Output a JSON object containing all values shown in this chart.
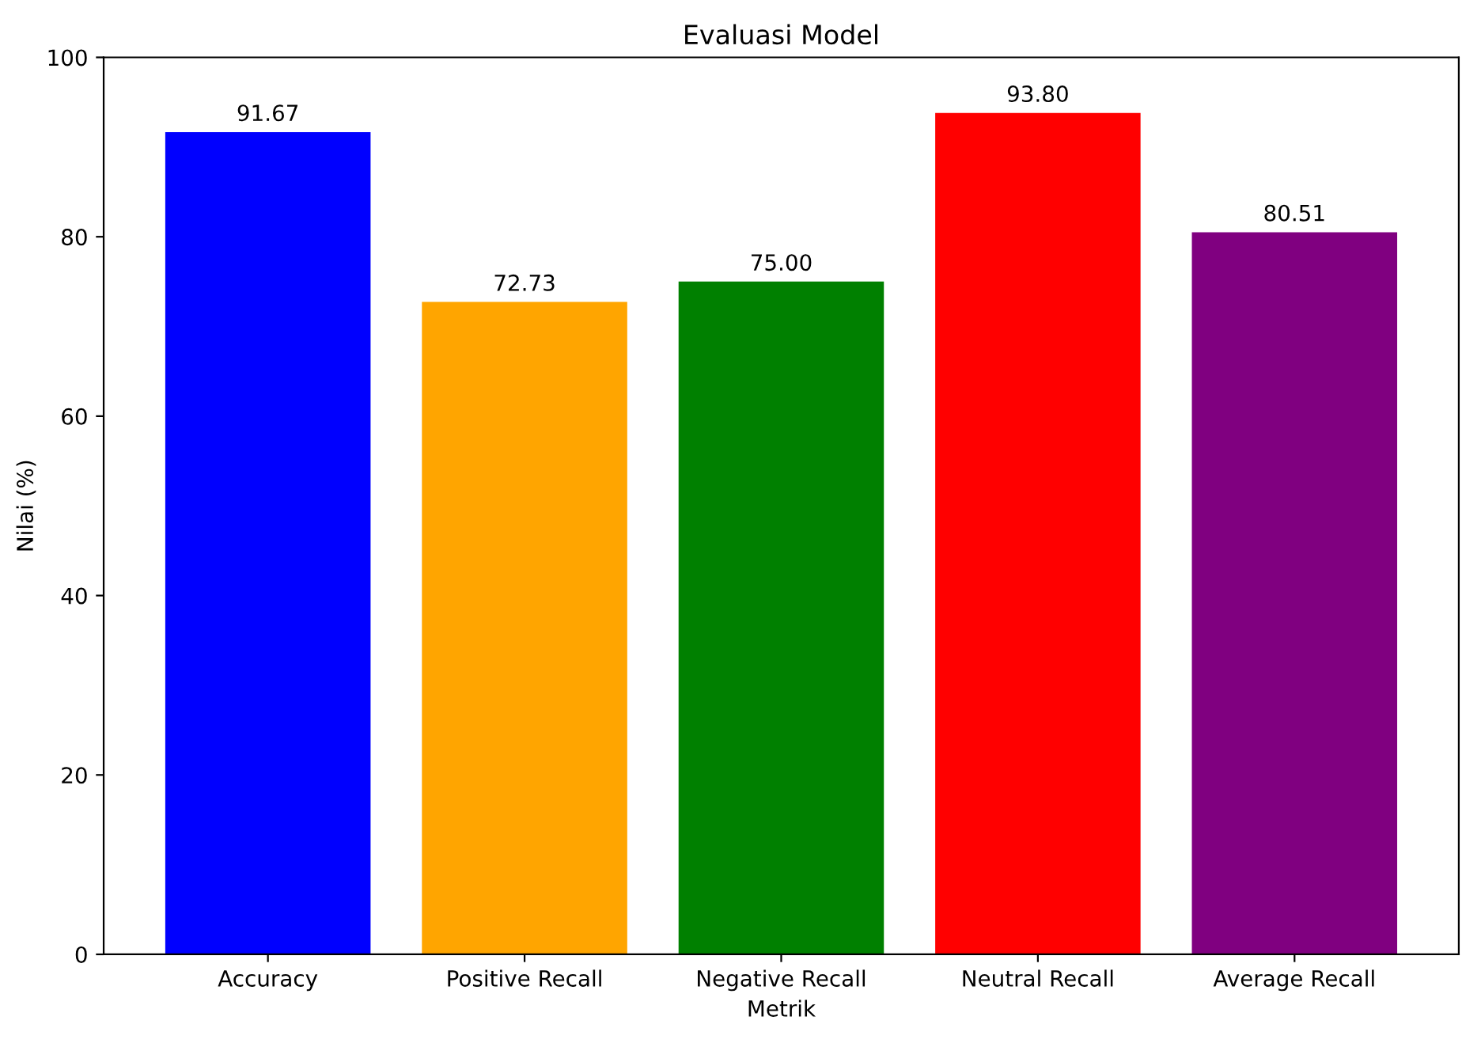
{
  "chart_data": {
    "type": "bar",
    "title": "Evaluasi Model",
    "xlabel": "Metrik",
    "ylabel": "Nilai (%)",
    "categories": [
      "Accuracy",
      "Positive Recall",
      "Negative Recall",
      "Neutral Recall",
      "Average Recall"
    ],
    "values": [
      91.67,
      72.73,
      75.0,
      93.8,
      80.51
    ],
    "value_labels": [
      "91.67",
      "72.73",
      "75.00",
      "93.80",
      "80.51"
    ],
    "colors": [
      "#0000ff",
      "#ffa500",
      "#008000",
      "#ff0000",
      "#800080"
    ],
    "ylim": [
      0,
      100
    ],
    "yticks": [
      0,
      20,
      40,
      60,
      80,
      100
    ],
    "grid": false,
    "legend": false
  }
}
